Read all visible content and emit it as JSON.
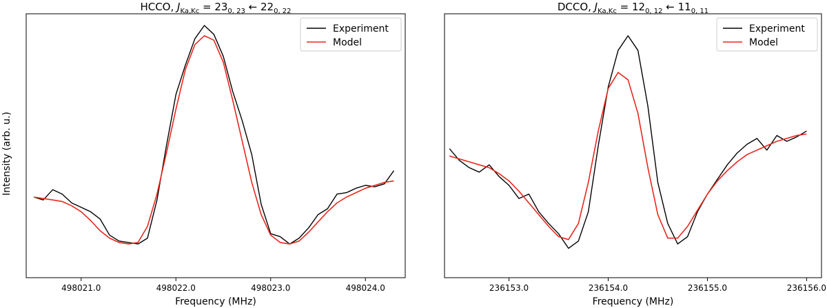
{
  "ylabel_shared": "Intensity (arb. u.)",
  "chart_data": [
    {
      "type": "line",
      "title_parts": {
        "prefix": "HCCO, ",
        "J": "J",
        "sub": "Ka,Kc",
        "eq": " = 23",
        "up_sub": "0, 23",
        "arrow": " ← 22",
        "lo_sub": "0, 22"
      },
      "xlabel": "Frequency (MHz)",
      "ylabel": "Intensity (arb. u.)",
      "xlim": [
        498020.42,
        498024.42
      ],
      "ylim": [
        -0.55,
        1.25
      ],
      "xticks": [
        498021.0,
        498022.0,
        498023.0,
        498024.0
      ],
      "xtick_labels": [
        "498021.0",
        "498022.0",
        "498023.0",
        "498024.0"
      ],
      "y_axis_ticks_visible": false,
      "legend_position": "top-right",
      "grid": false,
      "series": [
        {
          "name": "Experiment",
          "color": "#000000",
          "x": [
            498020.5,
            498020.6,
            498020.7,
            498020.8,
            498020.9,
            498021.0,
            498021.1,
            498021.2,
            498021.3,
            498021.4,
            498021.5,
            498021.6,
            498021.7,
            498021.8,
            498021.9,
            498022.0,
            498022.1,
            498022.2,
            498022.3,
            498022.4,
            498022.5,
            498022.6,
            498022.7,
            498022.8,
            498022.9,
            498023.0,
            498023.1,
            498023.2,
            498023.3,
            498023.4,
            498023.5,
            498023.6,
            498023.7,
            498023.8,
            498023.9,
            498024.0,
            498024.1,
            498024.2,
            498024.3
          ],
          "y": [
            0.0,
            -0.02,
            0.05,
            0.02,
            -0.04,
            -0.07,
            -0.1,
            -0.15,
            -0.26,
            -0.3,
            -0.31,
            -0.32,
            -0.28,
            -0.02,
            0.35,
            0.7,
            0.9,
            1.08,
            1.17,
            1.11,
            0.96,
            0.72,
            0.52,
            0.29,
            -0.05,
            -0.25,
            -0.27,
            -0.32,
            -0.28,
            -0.21,
            -0.12,
            -0.08,
            0.02,
            0.03,
            0.06,
            0.08,
            0.07,
            0.09,
            0.18
          ]
        },
        {
          "name": "Model",
          "color": "#e8261c",
          "x": [
            498020.5,
            498020.6,
            498020.7,
            498020.8,
            498020.9,
            498021.0,
            498021.1,
            498021.2,
            498021.3,
            498021.4,
            498021.5,
            498021.6,
            498021.7,
            498021.8,
            498021.9,
            498022.0,
            498022.1,
            498022.2,
            498022.3,
            498022.4,
            498022.5,
            498022.6,
            498022.7,
            498022.8,
            498022.9,
            498023.0,
            498023.1,
            498023.2,
            498023.3,
            498023.4,
            498023.5,
            498023.6,
            498023.7,
            498023.8,
            498023.9,
            498024.0,
            498024.1,
            498024.2,
            498024.3
          ],
          "y": [
            0.0,
            -0.01,
            -0.02,
            -0.03,
            -0.06,
            -0.1,
            -0.16,
            -0.23,
            -0.28,
            -0.31,
            -0.32,
            -0.31,
            -0.2,
            0.02,
            0.3,
            0.6,
            0.87,
            1.04,
            1.1,
            1.07,
            0.92,
            0.66,
            0.38,
            0.1,
            -0.12,
            -0.26,
            -0.31,
            -0.32,
            -0.3,
            -0.24,
            -0.17,
            -0.1,
            -0.04,
            0.0,
            0.03,
            0.06,
            0.08,
            0.1,
            0.11
          ]
        }
      ]
    },
    {
      "type": "line",
      "title_parts": {
        "prefix": "DCCO, ",
        "J": "J",
        "sub": "Ka,Kc",
        "eq": " = 12",
        "up_sub": "0, 12",
        "arrow": " ← 11",
        "lo_sub": "0, 11"
      },
      "xlabel": "Frequency (MHz)",
      "xlim": [
        236152.35,
        236156.15
      ],
      "ylim": [
        -0.55,
        1.25
      ],
      "xticks": [
        236153.0,
        236154.0,
        236155.0,
        236156.0
      ],
      "xtick_labels": [
        "236153.0",
        "236154.0",
        "236155.0",
        "236156.0"
      ],
      "y_axis_ticks_visible": false,
      "legend_position": "top-right",
      "grid": false,
      "series": [
        {
          "name": "Experiment",
          "color": "#000000",
          "x": [
            236152.4,
            236152.5,
            236152.6,
            236152.7,
            236152.8,
            236152.9,
            236153.0,
            236153.1,
            236153.2,
            236153.3,
            236153.4,
            236153.5,
            236153.6,
            236153.7,
            236153.8,
            236153.9,
            236154.0,
            236154.1,
            236154.2,
            236154.3,
            236154.4,
            236154.5,
            236154.6,
            236154.7,
            236154.8,
            236154.9,
            236155.0,
            236155.1,
            236155.2,
            236155.3,
            236155.4,
            236155.5,
            236155.6,
            236155.7,
            236155.8,
            236155.9,
            236156.0
          ],
          "y": [
            0.33,
            0.25,
            0.2,
            0.17,
            0.22,
            0.14,
            0.08,
            -0.01,
            0.02,
            -0.1,
            -0.18,
            -0.25,
            -0.35,
            -0.3,
            -0.1,
            0.35,
            0.75,
            1.0,
            1.1,
            1.0,
            0.62,
            0.1,
            -0.18,
            -0.32,
            -0.27,
            -0.1,
            0.02,
            0.12,
            0.22,
            0.3,
            0.36,
            0.4,
            0.32,
            0.42,
            0.38,
            0.41,
            0.45
          ]
        },
        {
          "name": "Model",
          "color": "#e8261c",
          "x": [
            236152.4,
            236152.5,
            236152.6,
            236152.7,
            236152.8,
            236152.9,
            236153.0,
            236153.1,
            236153.2,
            236153.3,
            236153.4,
            236153.5,
            236153.6,
            236153.7,
            236153.8,
            236153.9,
            236154.0,
            236154.1,
            236154.2,
            236154.3,
            236154.4,
            236154.5,
            236154.6,
            236154.7,
            236154.8,
            236154.9,
            236155.0,
            236155.1,
            236155.2,
            236155.3,
            236155.4,
            236155.5,
            236155.6,
            236155.7,
            236155.8,
            236155.9,
            236156.0
          ],
          "y": [
            0.28,
            0.26,
            0.24,
            0.22,
            0.2,
            0.16,
            0.11,
            0.04,
            -0.04,
            -0.12,
            -0.2,
            -0.27,
            -0.29,
            -0.18,
            0.1,
            0.45,
            0.74,
            0.85,
            0.8,
            0.57,
            0.2,
            -0.12,
            -0.28,
            -0.28,
            -0.2,
            -0.09,
            0.02,
            0.11,
            0.18,
            0.24,
            0.29,
            0.32,
            0.35,
            0.38,
            0.4,
            0.42,
            0.43
          ]
        }
      ]
    }
  ]
}
